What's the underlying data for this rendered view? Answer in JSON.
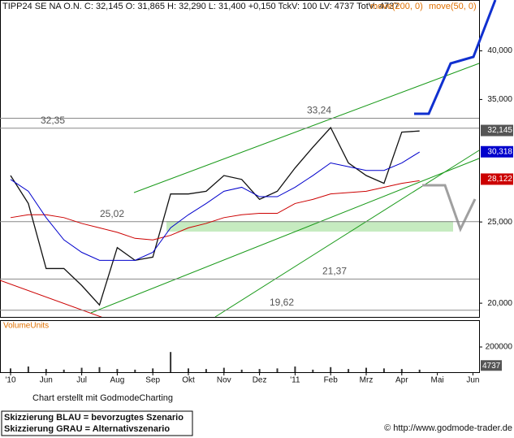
{
  "chart_data": {
    "type": "line",
    "quote": "C: 32,145 O: 31,865 H: 32,290 L: 31,400 +0,150 TckV: 100 LV: 4737 TotV: 4737",
    "categories": [
      "'10",
      null,
      "Jun",
      null,
      "Jul",
      null,
      "Aug",
      null,
      "Sep",
      null,
      "Okt",
      null,
      "Nov",
      null,
      "Dez",
      null,
      "'11",
      null,
      "Feb",
      null,
      "Mrz",
      null,
      "Apr",
      null,
      "Mai",
      null,
      "Jun",
      null
    ],
    "series": [
      {
        "name": "TIPP24 SE NA O.N.",
        "color": "#111111",
        "values": [
          28.4,
          26.3,
          22.0,
          22.0,
          21.0,
          19.9,
          23.3,
          22.5,
          22.7,
          27.0,
          27.0,
          27.2,
          28.4,
          28.1,
          26.6,
          27.2,
          29.0,
          30.7,
          32.4,
          29.4,
          28.4,
          27.8,
          32.0,
          32.1,
          null,
          null,
          null,
          null
        ],
        "last": {
          "value": 32.145,
          "label": "32,145"
        }
      },
      {
        "name": "move(200, 0)",
        "color": "#cc0000",
        "values": [
          25.3,
          25.5,
          25.5,
          25.3,
          24.9,
          24.6,
          24.3,
          23.9,
          23.8,
          24.1,
          24.6,
          24.9,
          25.3,
          25.5,
          25.6,
          25.6,
          26.3,
          26.6,
          27.0,
          27.1,
          27.2,
          27.5,
          27.8,
          28.0,
          null,
          null,
          null,
          null
        ],
        "last": {
          "value": 28.122,
          "label": "28,122"
        }
      },
      {
        "name": "move(50, 0)",
        "color": "#0000cc",
        "values": [
          28.1,
          27.2,
          25.3,
          23.8,
          23.0,
          22.5,
          22.5,
          22.5,
          23.0,
          24.6,
          25.5,
          26.3,
          27.2,
          27.5,
          26.8,
          26.8,
          27.5,
          28.4,
          29.4,
          29.1,
          28.8,
          28.8,
          29.4,
          30.3,
          null,
          null,
          null,
          null
        ],
        "last": {
          "value": 30.318,
          "label": "30,318"
        }
      }
    ],
    "log_scale": true,
    "grid": false,
    "ylim": [
      19.26,
      46.0
    ],
    "yticks": [
      {
        "value": 20,
        "label": "20,000"
      },
      {
        "value": 25,
        "label": "25,000"
      },
      {
        "value": 35,
        "label": "35,000"
      },
      {
        "value": 40,
        "label": "40,000"
      }
    ],
    "levels": [
      {
        "value": 33.24,
        "label": "33,24"
      },
      {
        "value": 32.35,
        "label": "32,35"
      },
      {
        "value": 25.02,
        "label": "25,02"
      },
      {
        "value": 21.37,
        "label": "21,37"
      },
      {
        "value": 19.62,
        "label": "19,62"
      }
    ],
    "volume": {
      "name": "VolumeUnits",
      "color": "#333333",
      "values": [
        30000,
        45000,
        25000,
        20000,
        35000,
        40000,
        25000,
        20000,
        30000,
        160000,
        30000,
        25000,
        35000,
        20000,
        25000,
        30000,
        45000,
        20000,
        40000,
        25000,
        35000,
        30000,
        25000,
        20000,
        null,
        null,
        null,
        null
      ],
      "ylim": [
        0,
        400000
      ],
      "yticks": [
        200000
      ],
      "last": 4737
    },
    "footer": {
      "credit": "Chart erstellt mit GodmodeCharting",
      "blue": "Skizzierung BLAU = bevorzugtes Szenario",
      "gray": "Skizzierung GRAU = Alternativszenario",
      "url": "© http://www.godmode-trader.de"
    }
  }
}
